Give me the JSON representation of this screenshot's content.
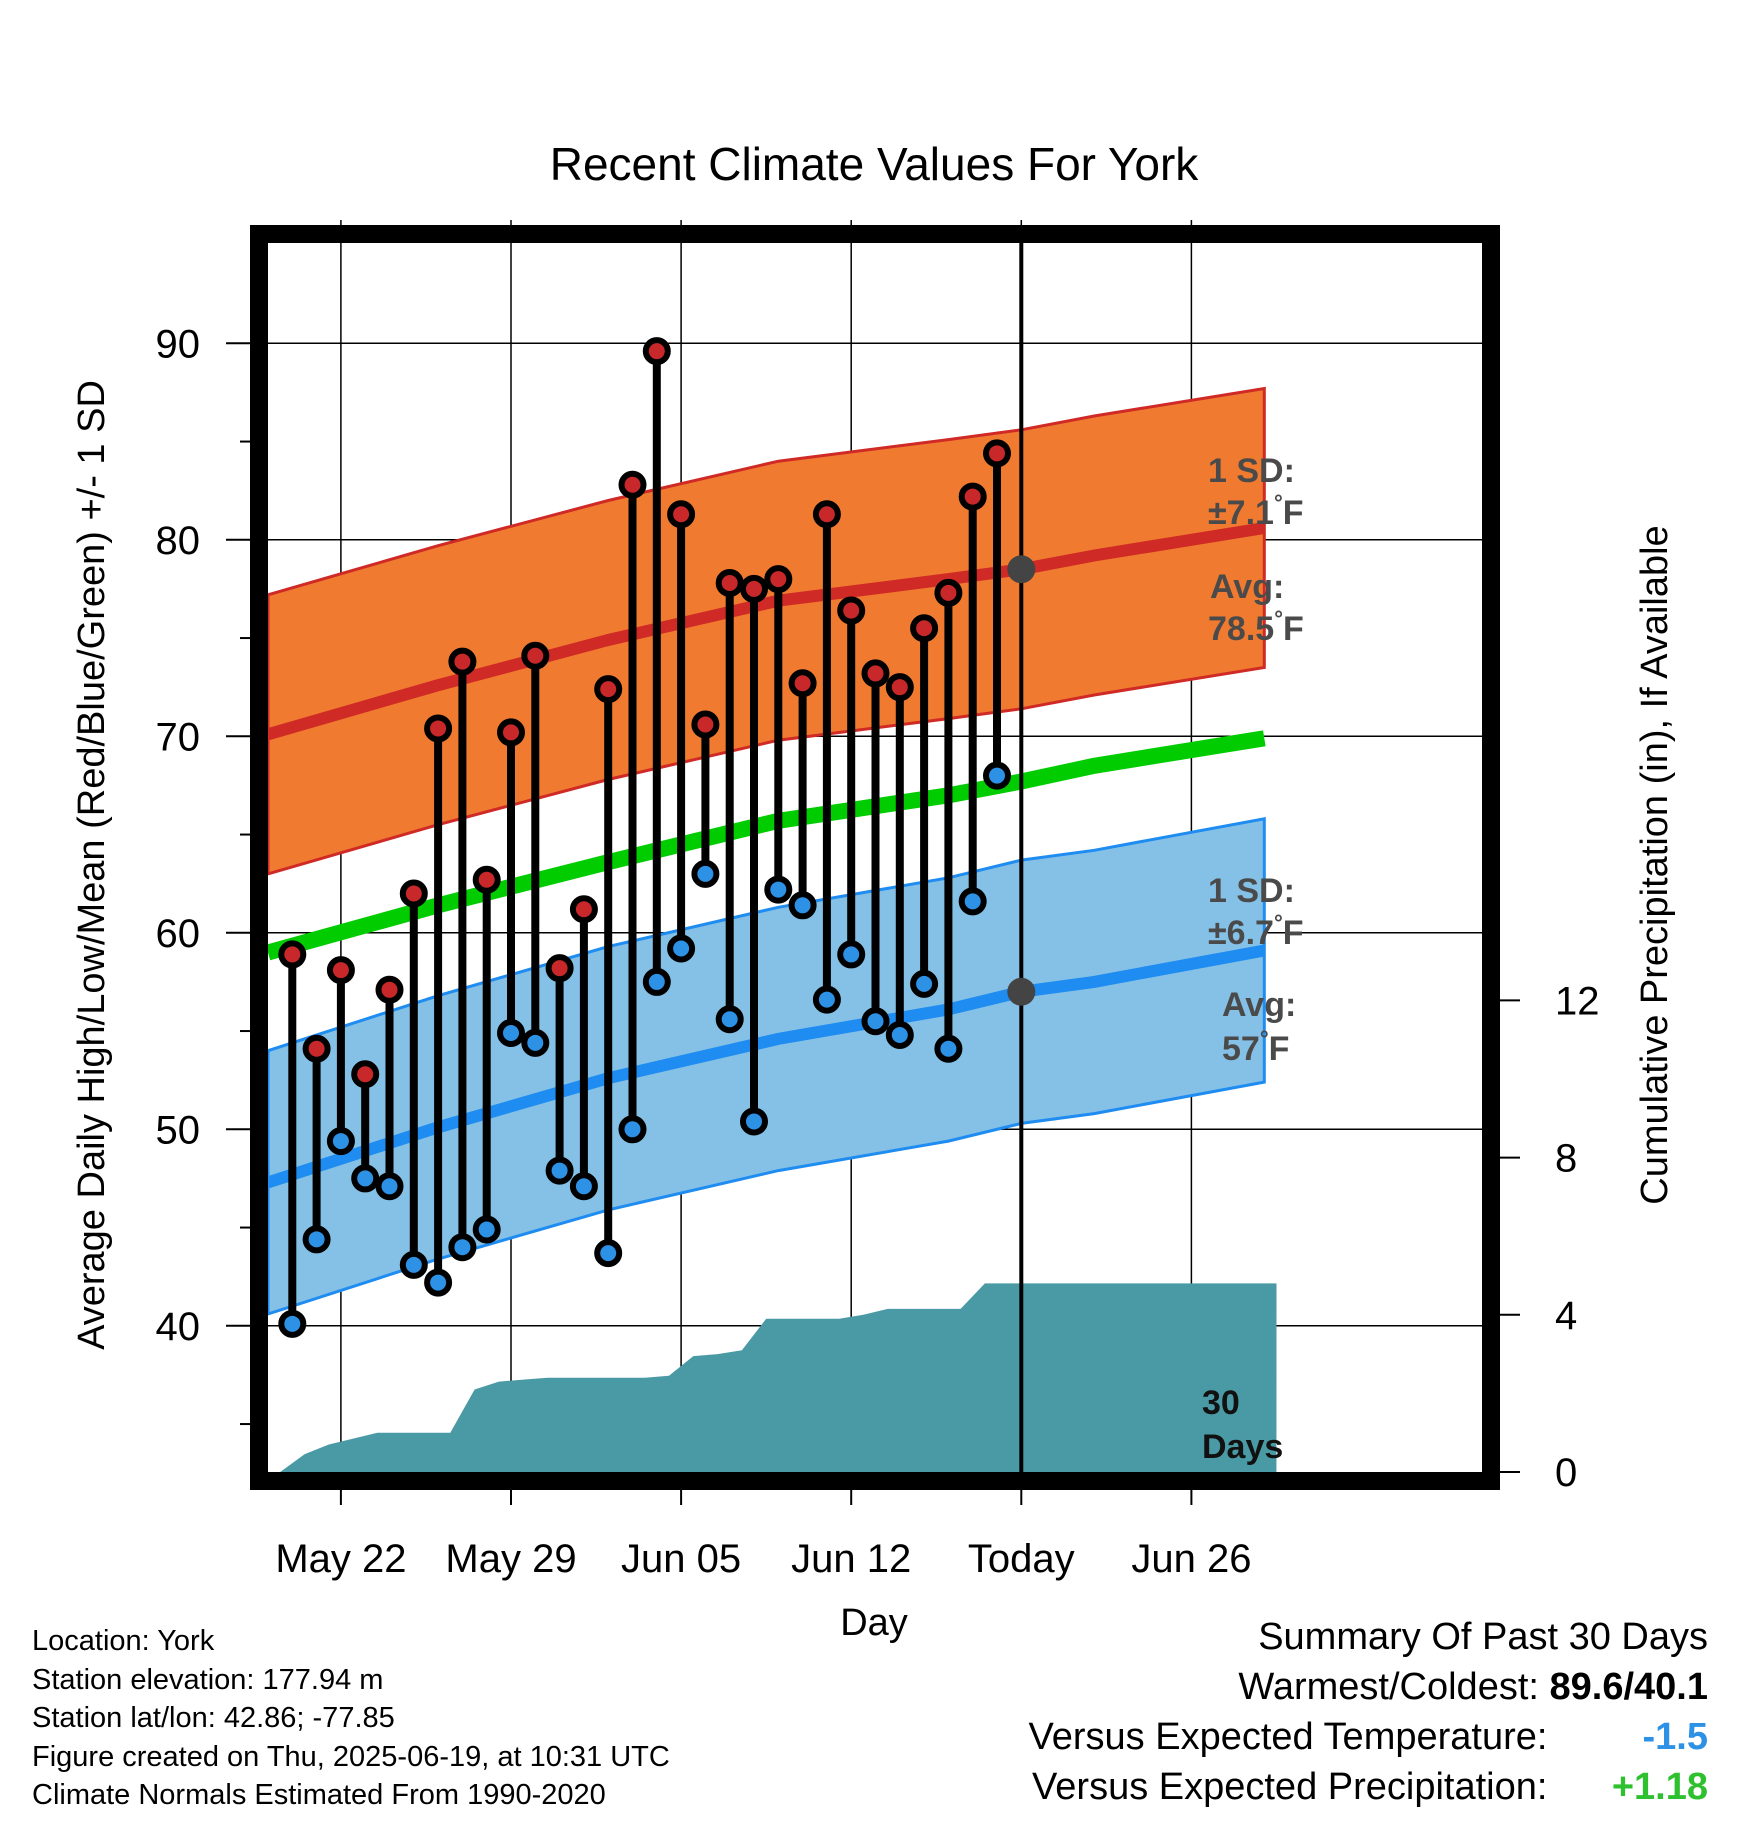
{
  "chart_data": {
    "type": "line",
    "title": "Recent Climate Values For York",
    "xlabel": "Day",
    "ylabel_left": "Average Daily High/Low/Mean (Red/Blue/Green) +/- 1 SD",
    "ylabel_right": "Cumulative Precipitation (in), If Available",
    "x_day_range": [
      -31,
      10.5
    ],
    "ylim_left": [
      32,
      95
    ],
    "ylim_right": [
      0,
      20
    ],
    "grid": true,
    "x_ticks": [
      {
        "day": -28,
        "label": "May 22"
      },
      {
        "day": -21,
        "label": "May 29"
      },
      {
        "day": -14,
        "label": "Jun 05"
      },
      {
        "day": -7,
        "label": "Jun 12"
      },
      {
        "day": 0,
        "label": "Today"
      },
      {
        "day": 7,
        "label": "Jun 26"
      }
    ],
    "y_ticks_left": [
      40,
      50,
      60,
      70,
      80,
      90
    ],
    "y_ticks_right": [
      0,
      4,
      8,
      12
    ],
    "normals": {
      "x": [
        -31,
        -24,
        -17,
        -10,
        -3,
        0,
        3,
        10
      ],
      "high_avg": [
        70.1,
        72.6,
        74.9,
        76.9,
        78.0,
        78.5,
        79.2,
        80.6
      ],
      "high_sd": 7.1,
      "low_avg": [
        47.3,
        50.1,
        52.6,
        54.6,
        56.1,
        57.0,
        57.5,
        59.1
      ],
      "low_sd": 6.7,
      "mean_avg": [
        59.0,
        61.4,
        63.6,
        65.7,
        67.0,
        67.7,
        68.5,
        69.9
      ]
    },
    "series": [
      {
        "name": "High",
        "x": [
          -30,
          -29,
          -28,
          -27,
          -26,
          -25,
          -24,
          -23,
          -22,
          -21,
          -20,
          -19,
          -18,
          -17,
          -16,
          -15,
          -14,
          -13,
          -12,
          -11,
          -10,
          -9,
          -8,
          -7,
          -6,
          -5,
          -4,
          -3,
          -2,
          -1
        ],
        "values": [
          58.9,
          54.1,
          58.1,
          52.8,
          57.1,
          62.0,
          70.4,
          73.8,
          62.7,
          70.2,
          74.1,
          58.2,
          61.2,
          72.4,
          82.8,
          89.6,
          81.3,
          70.6,
          77.8,
          77.5,
          78.0,
          72.7,
          81.3,
          76.4,
          73.2,
          72.5,
          75.5,
          77.3,
          82.2,
          84.4
        ]
      },
      {
        "name": "Low",
        "x": [
          -30,
          -29,
          -28,
          -27,
          -26,
          -25,
          -24,
          -23,
          -22,
          -21,
          -20,
          -19,
          -18,
          -17,
          -16,
          -15,
          -14,
          -13,
          -12,
          -11,
          -10,
          -9,
          -8,
          -7,
          -6,
          -5,
          -4,
          -3,
          -2,
          -1
        ],
        "values": [
          40.1,
          44.4,
          49.4,
          47.5,
          47.1,
          43.1,
          42.2,
          44.0,
          44.9,
          54.9,
          54.4,
          47.9,
          47.1,
          43.7,
          50.0,
          57.5,
          59.2,
          63.0,
          55.6,
          50.4,
          62.2,
          61.4,
          56.6,
          58.9,
          55.5,
          54.8,
          57.4,
          54.1,
          61.6,
          68.0
        ]
      },
      {
        "name": "Cumulative Precipitation",
        "axis": "right",
        "x": [
          -30.5,
          -29.5,
          -28.5,
          -27.5,
          -26.5,
          -25.5,
          -24.5,
          -23.5,
          -22.5,
          -21.5,
          -20.5,
          -19.5,
          -18.5,
          -17.5,
          -16.5,
          -15.5,
          -14.5,
          -13.5,
          -12.5,
          -11.5,
          -10.5,
          -9.5,
          -8.5,
          -7.5,
          -6.5,
          -5.5,
          -4.5,
          -3.5,
          -2.5,
          -1.5,
          -0.5,
          10.5
        ],
        "values": [
          0.0,
          0.45,
          0.7,
          0.85,
          1.0,
          1.0,
          1.0,
          1.0,
          2.1,
          2.3,
          2.35,
          2.4,
          2.4,
          2.4,
          2.4,
          2.4,
          2.45,
          2.95,
          3.0,
          3.1,
          3.9,
          3.9,
          3.9,
          3.9,
          4.0,
          4.15,
          4.15,
          4.15,
          4.15,
          4.8,
          4.8,
          4.8
        ]
      }
    ],
    "annotations": {
      "high": {
        "sd_label": "1 SD:",
        "sd_value": "±7.1",
        "avg_label": "Avg:",
        "avg_value": "78.5",
        "unit": "°F"
      },
      "low": {
        "sd_label": "1 SD:",
        "sd_value": "±6.7",
        "avg_label": "Avg:",
        "avg_value": "57",
        "unit": "°F"
      },
      "window_line1": "30",
      "window_line2": "Days"
    },
    "colors": {
      "high_band": "#f07b30",
      "high_line": "#cf2a25",
      "low_band": "#85c1e6",
      "low_line": "#1e8cf0",
      "mean_line": "#00cc00",
      "precip": "#4a9aa5",
      "high_dot": "#c8282a",
      "low_dot": "#2d91e5"
    }
  },
  "footer": {
    "location": "Location: York",
    "elevation": "Station elevation: 177.94 m",
    "latlon": "Station lat/lon: 42.86; -77.85",
    "created": "Figure created on Thu, 2025-06-19, at 10:31 UTC",
    "normals": "Climate Normals Estimated From 1990-2020"
  },
  "summary": {
    "title": "Summary Of Past 30 Days",
    "warm_cold_label": "Warmest/Coldest:",
    "warm_cold_value": "89.6/40.1",
    "temp_label": "Versus Expected Temperature:",
    "temp_value": "-1.5",
    "temp_color": "#2d91e5",
    "precip_label": "Versus Expected Precipitation:",
    "precip_value": "+1.18",
    "precip_color": "#2fc02f"
  }
}
